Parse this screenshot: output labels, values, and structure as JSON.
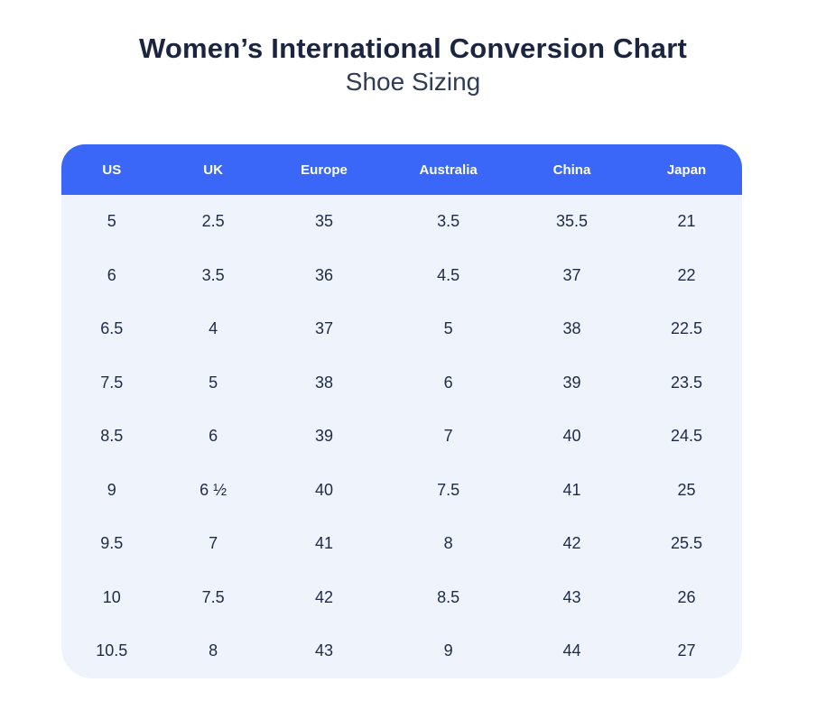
{
  "page": {
    "title": "Women’s International Conversion Chart",
    "subtitle": "Shoe Sizing"
  },
  "chart_data": {
    "type": "table",
    "title": "Women’s International Conversion Chart",
    "subtitle": "Shoe Sizing",
    "columns": [
      "US",
      "UK",
      "Europe",
      "Australia",
      "China",
      "Japan"
    ],
    "rows": [
      [
        "5",
        "2.5",
        "35",
        "3.5",
        "35.5",
        "21"
      ],
      [
        "6",
        "3.5",
        "36",
        "4.5",
        "37",
        "22"
      ],
      [
        "6.5",
        "4",
        "37",
        "5",
        "38",
        "22.5"
      ],
      [
        "7.5",
        "5",
        "38",
        "6",
        "39",
        "23.5"
      ],
      [
        "8.5",
        "6",
        "39",
        "7",
        "40",
        "24.5"
      ],
      [
        "9",
        "6 ½",
        "40",
        "7.5",
        "41",
        "25"
      ],
      [
        "9.5",
        "7",
        "41",
        "8",
        "42",
        "25.5"
      ],
      [
        "10",
        "7.5",
        "42",
        "8.5",
        "43",
        "26"
      ],
      [
        "10.5",
        "8",
        "43",
        "9",
        "44",
        "27"
      ]
    ],
    "column_widths_pct": [
      14.8,
      15.0,
      17.6,
      18.9,
      17.4,
      16.3
    ],
    "colors": {
      "header_bg": "#3a67f7",
      "header_text": "#ffffff",
      "body_bg": "#eff3fc",
      "cell_text": "#1e2b45",
      "title_text": "#1b2540",
      "subtitle_text": "#2e3c55"
    },
    "layout": {
      "grid": false,
      "borders": false,
      "alignment": "center"
    }
  }
}
